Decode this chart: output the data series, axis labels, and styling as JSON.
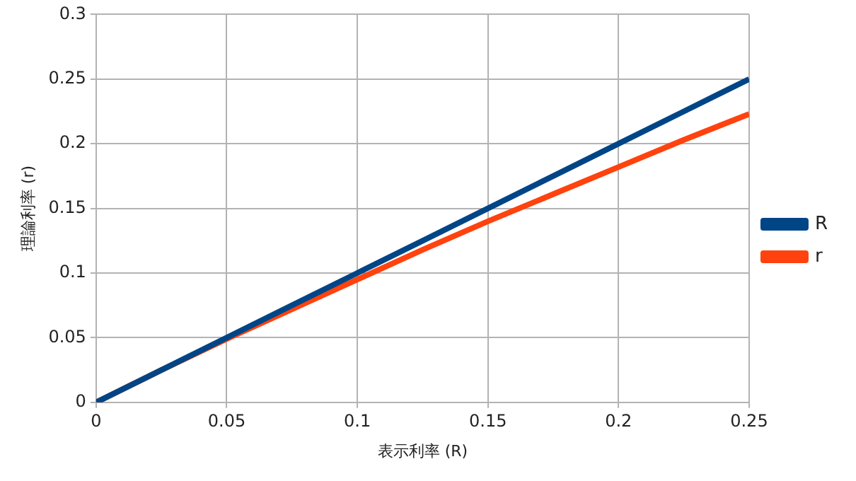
{
  "chart_data": {
    "type": "line",
    "xlabel": "表示利率 (R)",
    "ylabel": "理論利率 (r)",
    "x": [
      0,
      0.025,
      0.05,
      0.075,
      0.1,
      0.125,
      0.15,
      0.175,
      0.2,
      0.225,
      0.25
    ],
    "series": [
      {
        "name": "R",
        "color": "#004586",
        "values": [
          0,
          0.025,
          0.05,
          0.075,
          0.1,
          0.125,
          0.15,
          0.175,
          0.2,
          0.225,
          0.25
        ]
      },
      {
        "name": "r",
        "color": "#ff420e",
        "values": [
          0,
          0.025,
          0.049,
          0.072,
          0.095,
          0.118,
          0.14,
          0.161,
          0.182,
          0.203,
          0.223
        ]
      }
    ],
    "xlim": [
      0,
      0.25
    ],
    "xticks": [
      0,
      0.05,
      0.1,
      0.15,
      0.2,
      0.25
    ],
    "ylim": [
      0,
      0.3
    ],
    "yticks": [
      0,
      0.05,
      0.1,
      0.15,
      0.2,
      0.25,
      0.3
    ],
    "grid": true,
    "legend": "right",
    "marker": "none",
    "line_style": "solid"
  }
}
